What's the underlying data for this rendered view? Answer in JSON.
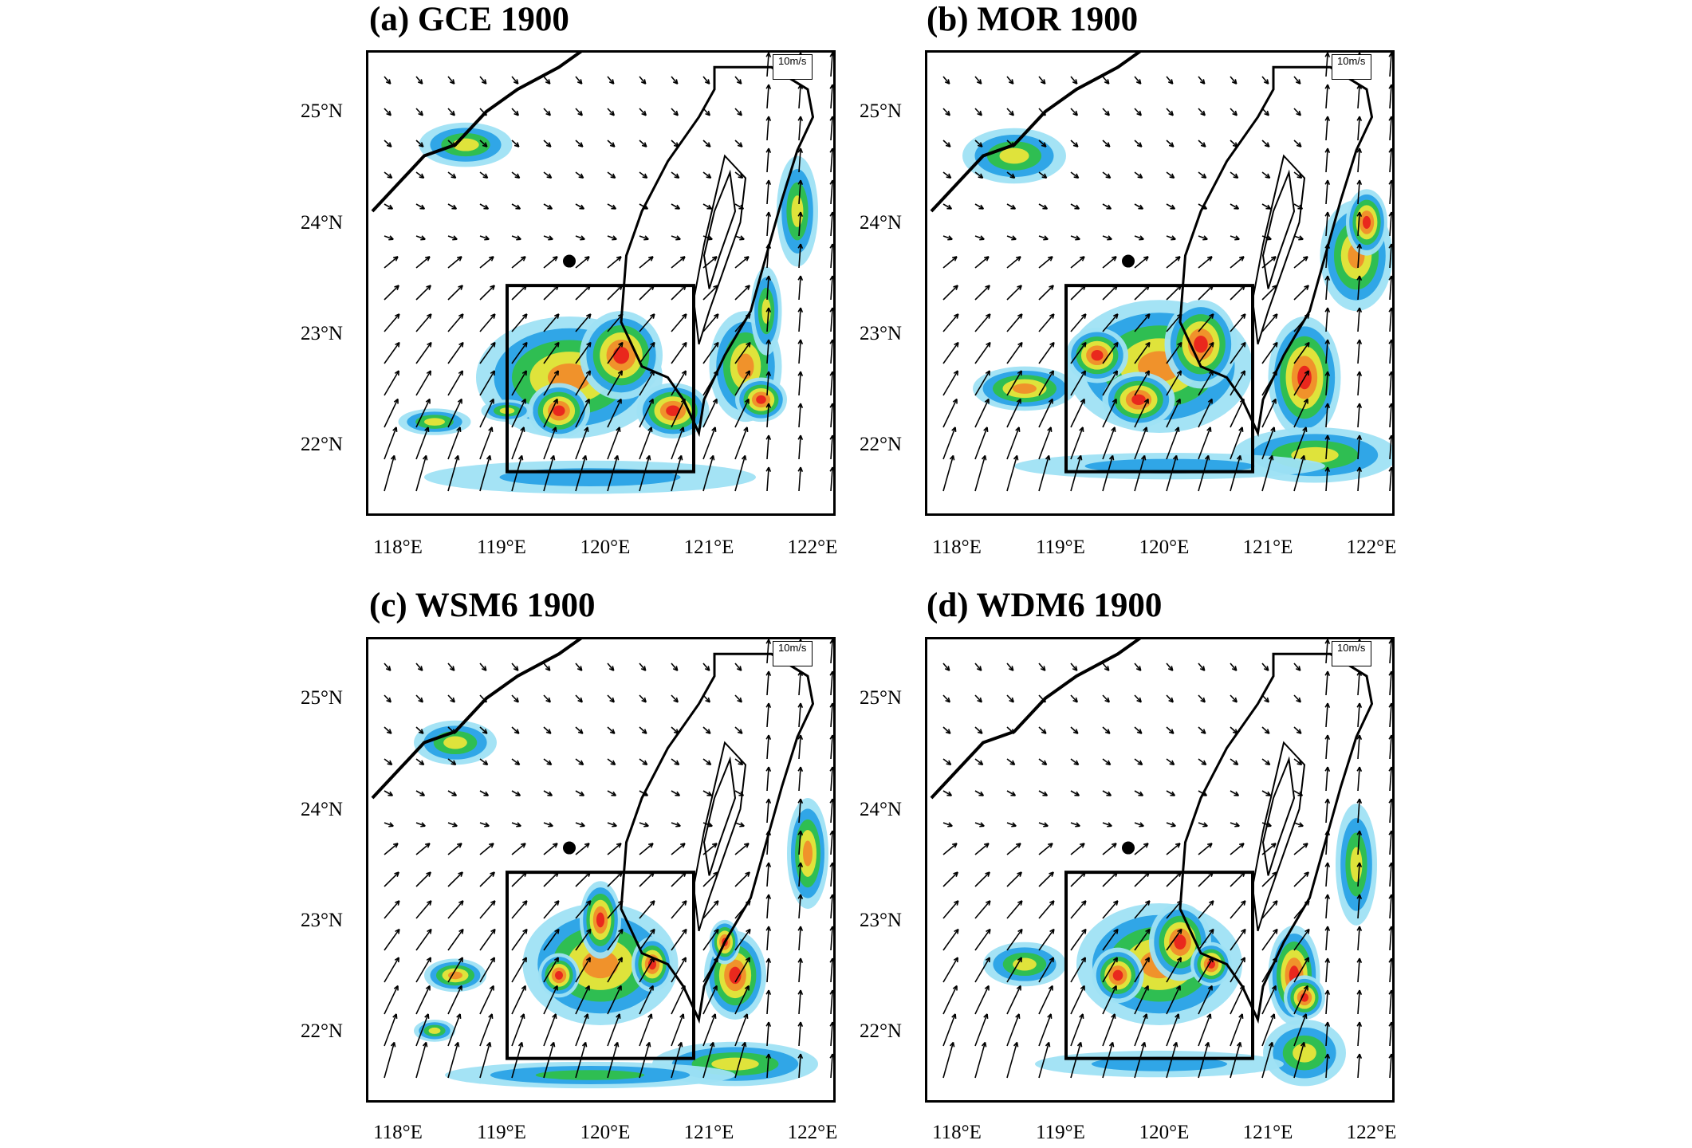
{
  "panels": [
    {
      "id": "a",
      "title": "(a) GCE 1900"
    },
    {
      "id": "b",
      "title": "(b) MOR 1900"
    },
    {
      "id": "c",
      "title": "(c) WSM6 1900"
    },
    {
      "id": "d",
      "title": "(d) WDM6 1900"
    }
  ],
  "lat_labels": [
    "25°N",
    "24°N",
    "23°N",
    "22°N"
  ],
  "lon_labels": [
    "118°E",
    "119°E",
    "120°E",
    "121°E",
    "122°E"
  ],
  "reference_vector_label": "10m/s",
  "colors": {
    "light_blue": "#9fe2f4",
    "blue": "#2aa2e6",
    "green": "#2fbf4a",
    "yellow": "#e9e53a",
    "orange": "#f08d2a",
    "red": "#e8231c"
  }
}
